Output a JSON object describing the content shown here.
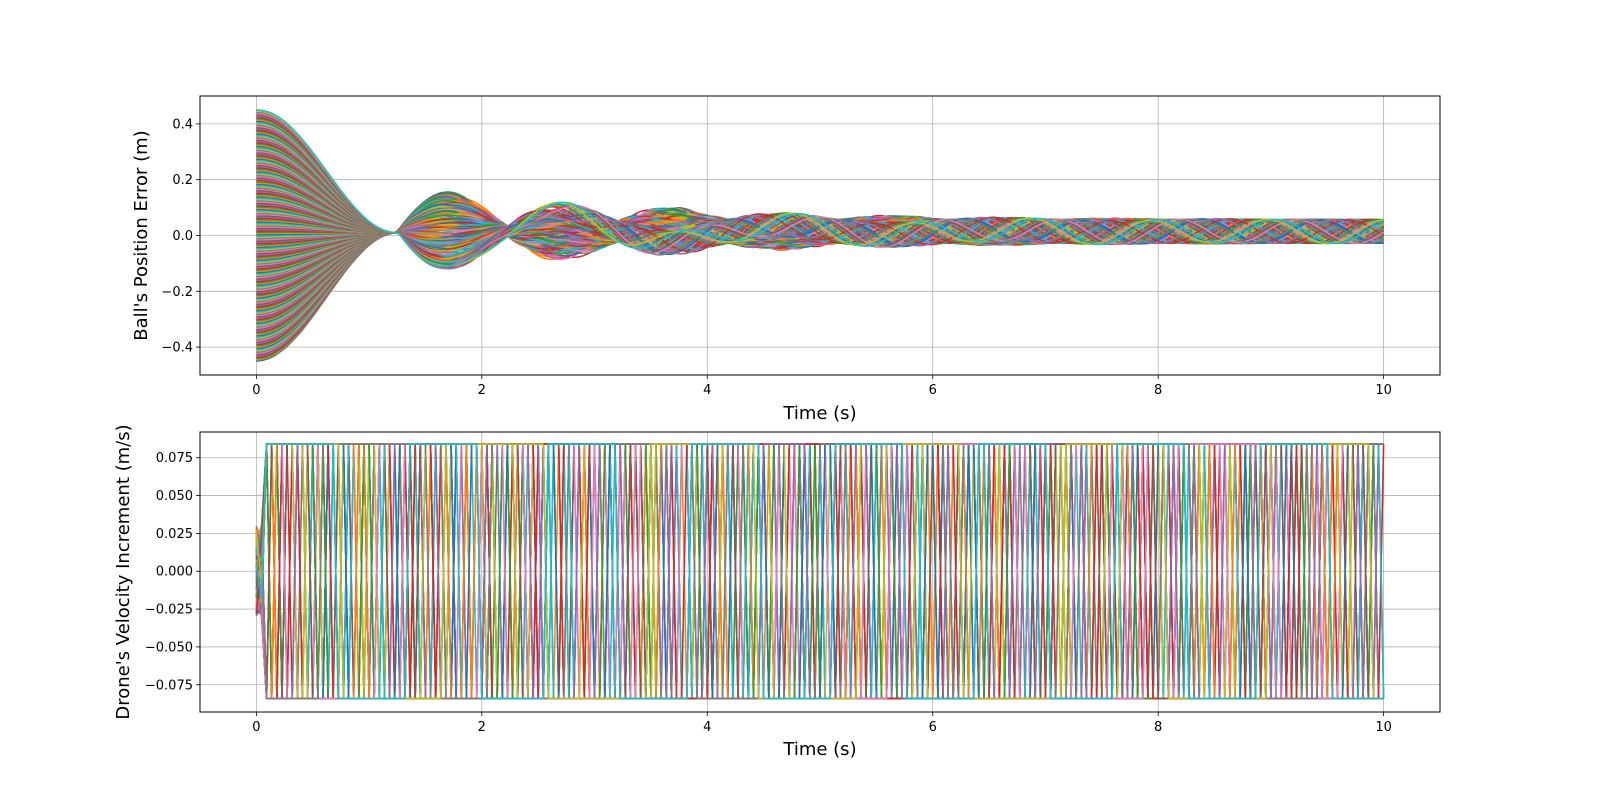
{
  "chart_data": [
    {
      "type": "line",
      "title": "",
      "xlabel": "Time (s)",
      "ylabel": "Ball's Position Error (m)",
      "xlim": [
        -0.5,
        10.5
      ],
      "ylim": [
        -0.5,
        0.5
      ],
      "xticks": [
        0,
        2,
        4,
        6,
        8,
        10
      ],
      "yticks": [
        -0.4,
        -0.2,
        0.0,
        0.2,
        0.4
      ],
      "x_tick_labels": [
        "0",
        "2",
        "4",
        "6",
        "8",
        "10"
      ],
      "y_tick_labels": [
        "−0.4",
        "−0.2",
        "0.0",
        "0.2",
        "0.4"
      ],
      "grid": true,
      "legend": "none",
      "series_count": 200,
      "x_range": [
        0,
        10
      ],
      "initial_value_range": [
        -0.45,
        0.45
      ],
      "envelope": {
        "x": [
          0,
          0.5,
          1.2,
          1.45,
          1.75,
          2.2,
          2.75,
          3.2,
          3.8,
          4.2,
          10
        ],
        "upper": [
          0.45,
          0.42,
          0.06,
          0.05,
          0.18,
          0.08,
          0.15,
          0.07,
          0.11,
          0.06,
          0.06
        ],
        "lower": [
          -0.45,
          -0.42,
          -0.05,
          -0.04,
          -0.13,
          -0.05,
          -0.14,
          -0.05,
          -0.06,
          -0.03,
          -0.03
        ]
      },
      "steady_state_band": [
        -0.03,
        0.06
      ]
    },
    {
      "type": "line",
      "title": "",
      "xlabel": "Time (s)",
      "ylabel": "Drone's Velocity Increment (m/s)",
      "xlim": [
        -0.5,
        10.5
      ],
      "ylim": [
        -0.093,
        0.092
      ],
      "xticks": [
        0,
        2,
        4,
        6,
        8,
        10
      ],
      "yticks": [
        -0.075,
        -0.05,
        -0.025,
        0.0,
        0.025,
        0.05,
        0.075
      ],
      "x_tick_labels": [
        "0",
        "2",
        "4",
        "6",
        "8",
        "10"
      ],
      "y_tick_labels": [
        "−0.075",
        "−0.050",
        "−0.025",
        "0.000",
        "0.025",
        "0.050",
        "0.075"
      ],
      "grid": true,
      "legend": "none",
      "series_count": 200,
      "x_range": [
        0,
        10
      ],
      "saturation_limits": [
        -0.084,
        0.084
      ],
      "behavior": "bang-bang switching between saturation limits"
    }
  ],
  "colors": [
    "#1f77b4",
    "#ff7f0e",
    "#2ca02c",
    "#d62728",
    "#9467bd",
    "#8c564b",
    "#e377c2",
    "#7f7f7f",
    "#bcbd22",
    "#17becf"
  ]
}
